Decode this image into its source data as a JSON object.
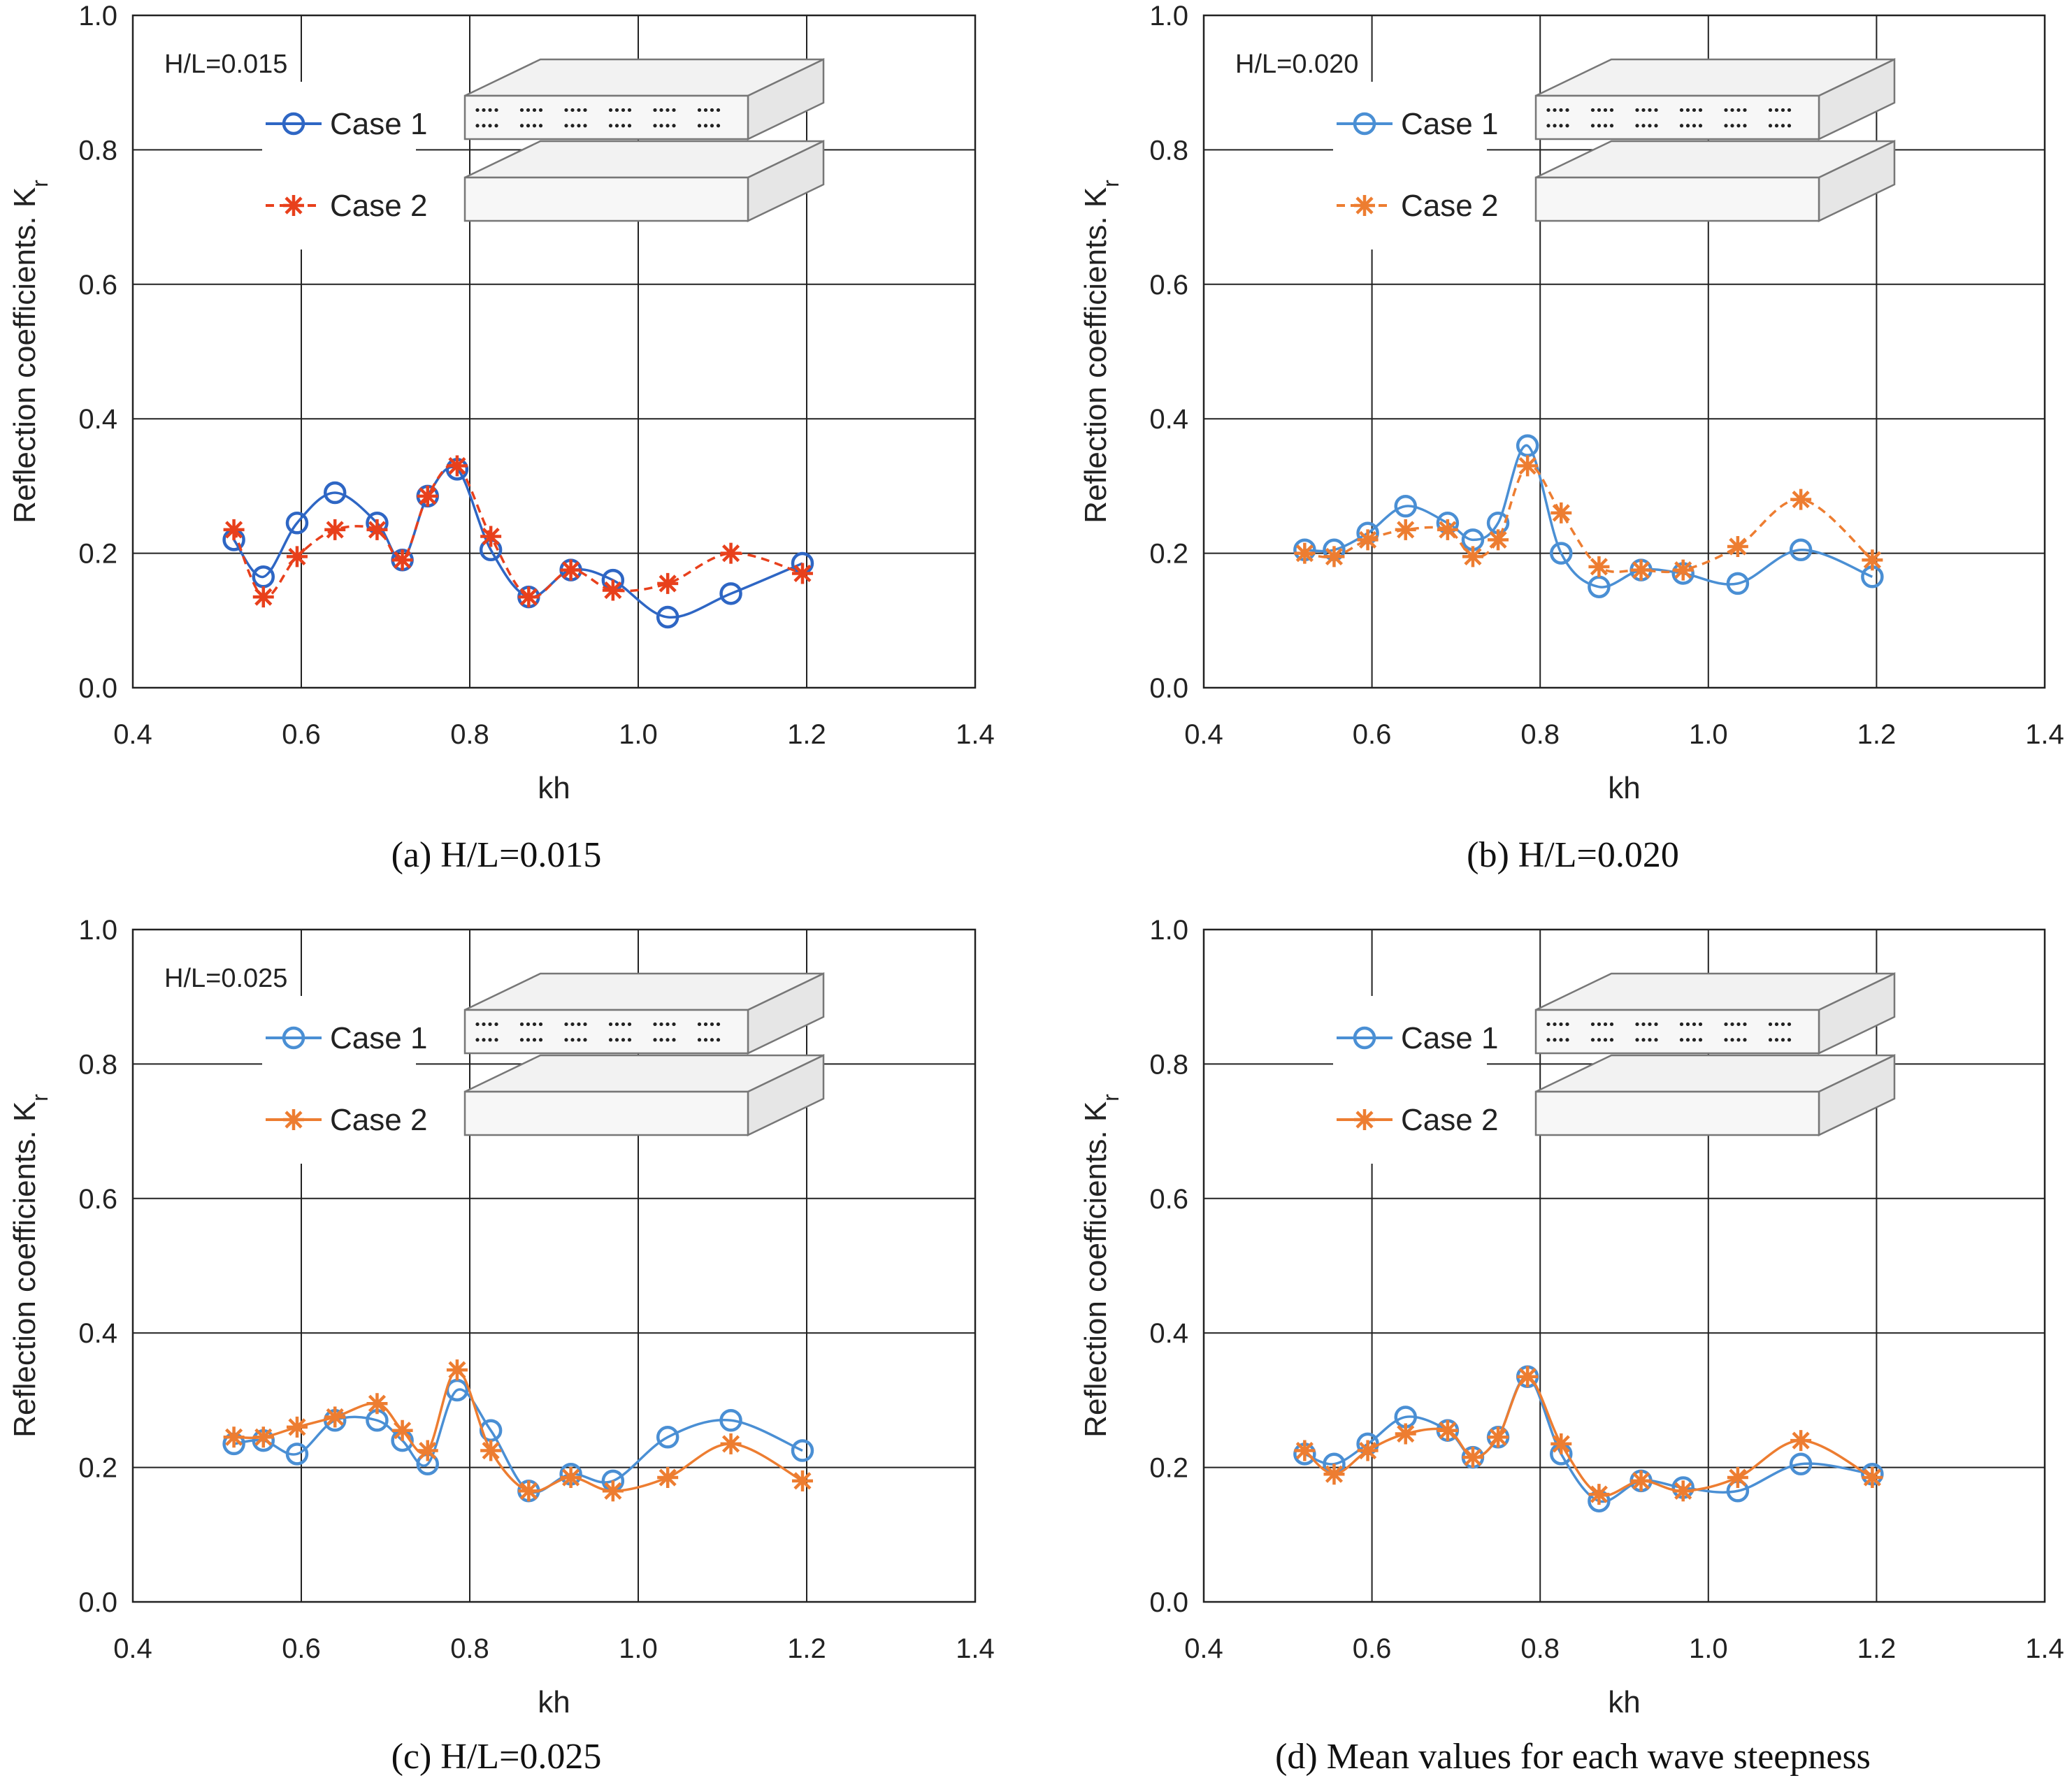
{
  "chart_data": [
    {
      "type": "line",
      "panel_label": "(a)",
      "caption": "(a)  H/L=0.015",
      "annotation": "H/L=0.015",
      "xlabel": "kh",
      "ylabel": "Reflection coefficients. K",
      "ylabel_sub": "r",
      "xlim": [
        0.4,
        1.4
      ],
      "ylim": [
        0.0,
        1.0
      ],
      "x_ticks": [
        "0.4",
        "0.6",
        "0.8",
        "1.0",
        "1.2",
        "1.4"
      ],
      "y_ticks": [
        "0.0",
        "0.2",
        "0.4",
        "0.6",
        "0.8",
        "1.0"
      ],
      "grid": true,
      "legend_position": "top-center",
      "x": [
        0.52,
        0.555,
        0.595,
        0.64,
        0.69,
        0.72,
        0.75,
        0.785,
        0.825,
        0.87,
        0.92,
        0.97,
        1.035,
        1.11,
        1.195
      ],
      "series": [
        {
          "name": "Case 1",
          "marker": "circle",
          "color": "#2e66c4",
          "dash": "none",
          "values": [
            0.22,
            0.165,
            0.245,
            0.29,
            0.245,
            0.19,
            0.285,
            0.325,
            0.205,
            0.135,
            0.175,
            0.16,
            0.105,
            0.14,
            0.185
          ]
        },
        {
          "name": "Case 2",
          "marker": "star",
          "color": "#e8401c",
          "dash": "dashed",
          "values": [
            0.235,
            0.135,
            0.195,
            0.235,
            0.235,
            0.19,
            0.285,
            0.33,
            0.225,
            0.135,
            0.175,
            0.145,
            0.155,
            0.2,
            0.17
          ]
        }
      ]
    },
    {
      "type": "line",
      "panel_label": "(b)",
      "caption": "(b)  H/L=0.020",
      "annotation": "H/L=0.020",
      "xlabel": "kh",
      "ylabel": "Reflection coefficients. K",
      "ylabel_sub": "r",
      "xlim": [
        0.4,
        1.4
      ],
      "ylim": [
        0.0,
        1.0
      ],
      "x_ticks": [
        "0.4",
        "0.6",
        "0.8",
        "1.0",
        "1.2",
        "1.4"
      ],
      "y_ticks": [
        "0.0",
        "0.2",
        "0.4",
        "0.6",
        "0.8",
        "1.0"
      ],
      "grid": true,
      "legend_position": "top-center",
      "x": [
        0.52,
        0.555,
        0.595,
        0.64,
        0.69,
        0.72,
        0.75,
        0.785,
        0.825,
        0.87,
        0.92,
        0.97,
        1.035,
        1.11,
        1.195
      ],
      "series": [
        {
          "name": "Case 1",
          "marker": "circle",
          "color": "#4a8fd4",
          "dash": "none",
          "values": [
            0.205,
            0.205,
            0.23,
            0.27,
            0.245,
            0.22,
            0.245,
            0.36,
            0.2,
            0.15,
            0.175,
            0.17,
            0.155,
            0.205,
            0.165
          ]
        },
        {
          "name": "Case 2",
          "marker": "star",
          "color": "#ed7d31",
          "dash": "dashed",
          "values": [
            0.2,
            0.195,
            0.22,
            0.235,
            0.235,
            0.195,
            0.22,
            0.33,
            0.26,
            0.18,
            0.175,
            0.175,
            0.21,
            0.28,
            0.19
          ]
        }
      ]
    },
    {
      "type": "line",
      "panel_label": "(c)",
      "caption": "(c)  H/L=0.025",
      "annotation": "H/L=0.025",
      "xlabel": "kh",
      "ylabel": "Reflection coefficients. K",
      "ylabel_sub": "r",
      "xlim": [
        0.4,
        1.4
      ],
      "ylim": [
        0.0,
        1.0
      ],
      "x_ticks": [
        "0.4",
        "0.6",
        "0.8",
        "1.0",
        "1.2",
        "1.4"
      ],
      "y_ticks": [
        "0.0",
        "0.2",
        "0.4",
        "0.6",
        "0.8",
        "1.0"
      ],
      "grid": true,
      "legend_position": "top-center",
      "x": [
        0.52,
        0.555,
        0.595,
        0.64,
        0.69,
        0.72,
        0.75,
        0.785,
        0.825,
        0.87,
        0.92,
        0.97,
        1.035,
        1.11,
        1.195
      ],
      "series": [
        {
          "name": "Case 1",
          "marker": "circle",
          "color": "#4a8fd4",
          "dash": "none",
          "values": [
            0.235,
            0.24,
            0.22,
            0.27,
            0.27,
            0.24,
            0.205,
            0.315,
            0.255,
            0.165,
            0.19,
            0.18,
            0.245,
            0.27,
            0.225
          ]
        },
        {
          "name": "Case 2",
          "marker": "star",
          "color": "#ed7d31",
          "dash": "none",
          "values": [
            0.245,
            0.245,
            0.26,
            0.275,
            0.295,
            0.255,
            0.225,
            0.345,
            0.225,
            0.165,
            0.185,
            0.165,
            0.185,
            0.235,
            0.18
          ]
        }
      ]
    },
    {
      "type": "line",
      "panel_label": "(d)",
      "caption": "(d)  Mean values for each wave steepness",
      "annotation": "",
      "xlabel": "kh",
      "ylabel": "Reflection coefficients. K",
      "ylabel_sub": "r",
      "xlim": [
        0.4,
        1.4
      ],
      "ylim": [
        0.0,
        1.0
      ],
      "x_ticks": [
        "0.4",
        "0.6",
        "0.8",
        "1.0",
        "1.2",
        "1.4"
      ],
      "y_ticks": [
        "0.0",
        "0.2",
        "0.4",
        "0.6",
        "0.8",
        "1.0"
      ],
      "grid": true,
      "legend_position": "top-center",
      "x": [
        0.52,
        0.555,
        0.595,
        0.64,
        0.69,
        0.72,
        0.75,
        0.785,
        0.825,
        0.87,
        0.92,
        0.97,
        1.035,
        1.11,
        1.195
      ],
      "series": [
        {
          "name": "Case 1",
          "marker": "circle",
          "color": "#4a8fd4",
          "dash": "none",
          "values": [
            0.22,
            0.205,
            0.235,
            0.275,
            0.255,
            0.215,
            0.245,
            0.335,
            0.22,
            0.15,
            0.18,
            0.17,
            0.165,
            0.205,
            0.19
          ]
        },
        {
          "name": "Case 2",
          "marker": "star",
          "color": "#ed7d31",
          "dash": "none",
          "values": [
            0.225,
            0.19,
            0.225,
            0.25,
            0.255,
            0.215,
            0.245,
            0.335,
            0.235,
            0.16,
            0.18,
            0.165,
            0.185,
            0.24,
            0.185
          ]
        }
      ]
    }
  ]
}
